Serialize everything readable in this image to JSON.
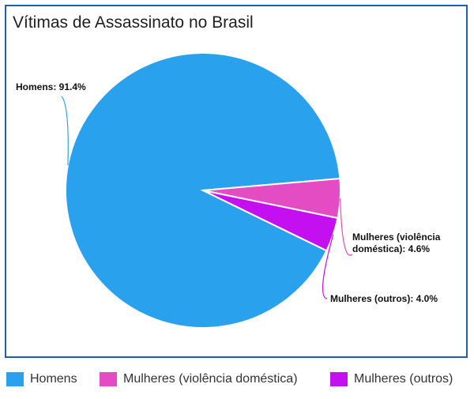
{
  "chart_data": {
    "type": "pie",
    "title": "Vítimas de Assassinato no Brasil",
    "slices": [
      {
        "name": "Homens",
        "value": 91.4,
        "label": "Homens: 91.4%",
        "color": "#2aa1ec"
      },
      {
        "name": "Mulheres (violência doméstica)",
        "value": 4.6,
        "label_lines": [
          "Mulheres (violência",
          "doméstica): 4.6%"
        ],
        "color": "#e34cc3"
      },
      {
        "name": "Mulheres (outros)",
        "value": 4.0,
        "label": "Mulheres (outros): 4.0%",
        "color": "#c40ff0"
      }
    ],
    "legend_position": "bottom"
  },
  "colors": {
    "frame_border": "#1f5fa8"
  }
}
